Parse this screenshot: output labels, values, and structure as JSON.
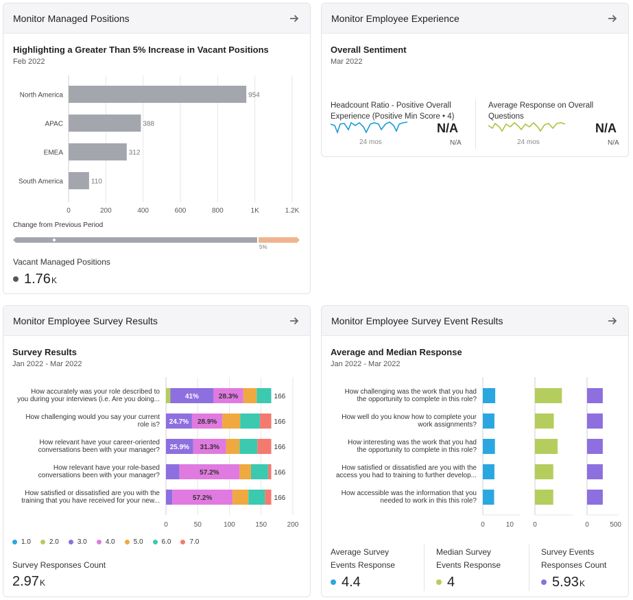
{
  "cards": {
    "managed": {
      "title": "Monitor Managed Positions",
      "chart_title": "Highlighting a Greater Than 5% Increase in Vacant Positions",
      "date": "Feb 2022",
      "change_label": "Change from Previous Period",
      "change_pct_label": "5%",
      "kpi_label": "Vacant Managed Positions",
      "kpi_value": "1.76",
      "kpi_unit": "K",
      "kpi_color": "#555560"
    },
    "experience": {
      "title": "Monitor Employee Experience",
      "section_title": "Overall Sentiment",
      "date": "Mar 2022",
      "metric1": {
        "label": "Headcount Ratio - Positive Overall Experience (Positive Min Score • 4)",
        "value": "N/A",
        "sub": "N/A",
        "period": "24 mos",
        "color": "#1a9bd8"
      },
      "metric2": {
        "label": "Average Response on Overall Questions",
        "value": "N/A",
        "sub": "N/A",
        "period": "24 mos",
        "color": "#a8c43c"
      }
    },
    "survey": {
      "title": "Monitor Employee Survey Results",
      "section_title": "Survey Results",
      "date": "Jan 2022 - Mar 2022",
      "kpi_label": "Survey Responses Count",
      "kpi_value": "2.97",
      "kpi_unit": "K"
    },
    "events": {
      "title": "Monitor Employee Survey Event Results",
      "section_title": "Average and Median Response",
      "date": "Jan 2022 - Mar 2022",
      "kpis": [
        {
          "label1": "Average Survey",
          "label2": "Events Response",
          "value": "4.4",
          "unit": "",
          "color": "#2aa7e0"
        },
        {
          "label1": "Median Survey",
          "label2": "Events Response",
          "value": "4",
          "unit": "",
          "color": "#b5cd5c"
        },
        {
          "label1": "Survey Events",
          "label2": "Responses Count",
          "value": "5.93",
          "unit": "K",
          "color": "#8d6fe0"
        }
      ]
    }
  },
  "chart_data": [
    {
      "type": "bar",
      "orientation": "horizontal",
      "categories": [
        "North America",
        "APAC",
        "EMEA",
        "South America"
      ],
      "values": [
        954,
        388,
        312,
        110
      ],
      "xlim": [
        0,
        1200
      ],
      "ticks": [
        "0",
        "200",
        "400",
        "600",
        "800",
        "1K",
        "1.2K"
      ],
      "color": "#a3a6ad"
    },
    {
      "type": "bar",
      "orientation": "horizontal",
      "stacked": true,
      "categories": [
        [
          "How accurately was your role described to",
          "you during your interviews (i.e. Are you doing..."
        ],
        [
          "How challenging would you say your current",
          "role is?"
        ],
        [
          "How relevant have your career-oriented",
          "conversations been with your manager?"
        ],
        [
          "How relevant have your role-based",
          "conversations been with your manager?"
        ],
        [
          "How satisfied or dissatisfied are you with the",
          "training that you have received for your new..."
        ]
      ],
      "series": [
        {
          "name": "1.0",
          "color": "#2aa7e0",
          "values": [
            0,
            0,
            0,
            0,
            0
          ]
        },
        {
          "name": "2.0",
          "color": "#b5cd5c",
          "values": [
            7,
            0,
            0,
            0,
            0
          ]
        },
        {
          "name": "3.0",
          "color": "#8d6fe0",
          "values": [
            68,
            41,
            43,
            21,
            10
          ]
        },
        {
          "name": "4.0",
          "color": "#e07ae0",
          "values": [
            47,
            48,
            52,
            95,
            95
          ]
        },
        {
          "name": "5.0",
          "color": "#f0a940",
          "values": [
            21,
            28,
            21,
            18,
            25
          ]
        },
        {
          "name": "6.0",
          "color": "#3bc9b0",
          "values": [
            23,
            31,
            28,
            27,
            26
          ]
        },
        {
          "name": "7.0",
          "color": "#f47a6f",
          "values": [
            0,
            18,
            22,
            5,
            10
          ]
        }
      ],
      "segment_labels": [
        [
          "",
          "",
          "41%",
          "28.3%",
          "",
          "",
          ""
        ],
        [
          "",
          "",
          "24.7%",
          "28.9%",
          "",
          "",
          ""
        ],
        [
          "",
          "",
          "25.9%",
          "31.3%",
          "",
          "",
          ""
        ],
        [
          "",
          "",
          "",
          "57.2%",
          "",
          "",
          ""
        ],
        [
          "",
          "",
          "",
          "57.2%",
          "",
          "",
          ""
        ]
      ],
      "totals": [
        166,
        166,
        166,
        166,
        166
      ],
      "xlim": [
        0,
        200
      ],
      "ticks": [
        "0",
        "50",
        "100",
        "150",
        "200"
      ],
      "legend": "bottom"
    },
    {
      "type": "bar",
      "orientation": "horizontal",
      "small_multiples": true,
      "categories": [
        [
          "How challenging was the work that you had",
          "the opportunity to complete in this role?"
        ],
        [
          "How well do you know how to complete your",
          "work assignments?"
        ],
        [
          "How interesting was the work that you had",
          "the opportunity to complete in this role?"
        ],
        [
          "How satisfied or dissatisfied are you with the",
          "access you had to training to further develop..."
        ],
        [
          "How accessible was the information that you",
          "needed to work in this this role?"
        ]
      ],
      "series": [
        {
          "name": "Average Survey Events Response",
          "color": "#2aa7e0",
          "values": [
            4.6,
            4.3,
            4.5,
            4.3,
            4.2
          ],
          "xlim": [
            0,
            15
          ],
          "ticks": [
            "0",
            "10"
          ]
        },
        {
          "name": "Median Survey Events Response",
          "color": "#b5cd5c",
          "values": [
            5,
            3.5,
            4.2,
            3.4,
            3.4
          ],
          "xlim": [
            0,
            7.5
          ],
          "ticks": [
            "0",
            ""
          ]
        },
        {
          "name": "Survey Events Responses Count",
          "color": "#8d6fe0",
          "values": [
            275,
            275,
            275,
            275,
            275
          ],
          "xlim": [
            0,
            600
          ],
          "ticks": [
            "0",
            "500"
          ]
        }
      ]
    }
  ]
}
